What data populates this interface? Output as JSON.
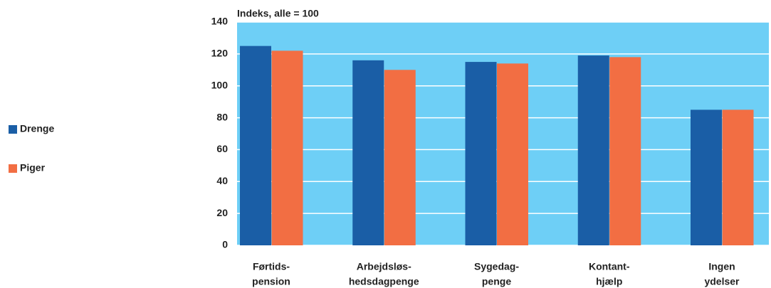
{
  "chart_data": {
    "type": "bar",
    "title": "Indeks, alle = 100",
    "categories": [
      [
        "Førtids-",
        "pension"
      ],
      [
        "Arbejdsløs-",
        "hedsdagpenge"
      ],
      [
        "Sygedag-",
        "penge"
      ],
      [
        "Kontant-",
        "hjælp"
      ],
      [
        "Ingen",
        "ydelser"
      ]
    ],
    "series": [
      {
        "name": "Drenge",
        "color": "#1a5ea6",
        "values": [
          125,
          116,
          115,
          119,
          85
        ]
      },
      {
        "name": "Piger",
        "color": "#f26e43",
        "values": [
          122,
          110,
          114,
          118,
          85
        ]
      }
    ],
    "ylim": [
      0,
      140
    ],
    "yticks": [
      0,
      20,
      40,
      60,
      80,
      100,
      120,
      140
    ],
    "grid": true,
    "plot_background": "#6ecff6"
  }
}
